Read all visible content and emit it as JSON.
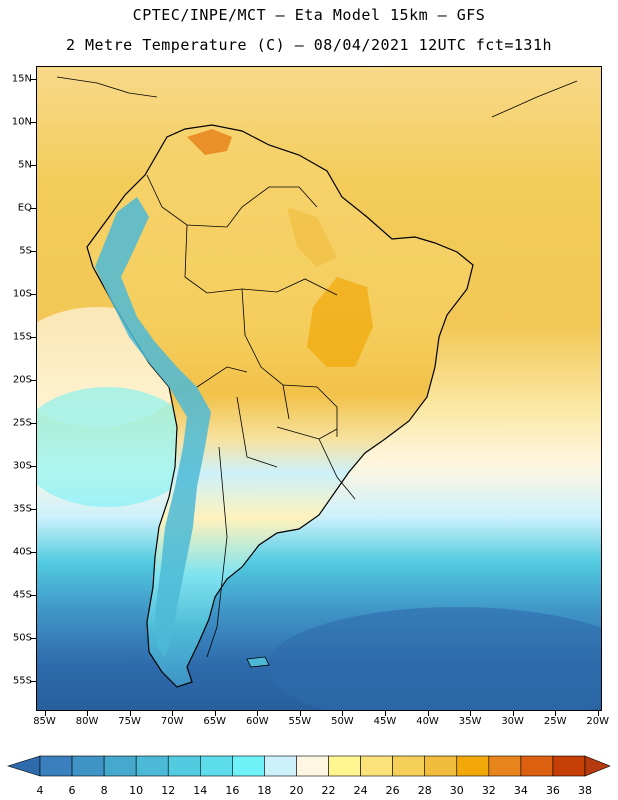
{
  "header": {
    "title_line1": "CPTEC/INPE/MCT –  Eta Model 15km – GFS",
    "title_line2": "2 Metre Temperature (C) – 08/04/2021 12UTC fct=131h"
  },
  "map": {
    "lat_labels": [
      "15N",
      "10N",
      "5N",
      "EQ",
      "5S",
      "10S",
      "15S",
      "20S",
      "25S",
      "30S",
      "35S",
      "40S",
      "45S",
      "50S",
      "55S"
    ],
    "lon_labels": [
      "85W",
      "80W",
      "75W",
      "70W",
      "65W",
      "60W",
      "55W",
      "50W",
      "45W",
      "40W",
      "35W",
      "30W",
      "25W",
      "20W"
    ],
    "extent": {
      "lon_min": -86,
      "lon_max": -19.5,
      "lat_max": 16.5,
      "lat_min": -58.5
    }
  },
  "colorbar": {
    "labels": [
      "4",
      "6",
      "8",
      "10",
      "12",
      "14",
      "16",
      "18",
      "20",
      "22",
      "24",
      "26",
      "28",
      "30",
      "32",
      "34",
      "36",
      "38"
    ],
    "colors": [
      "#2e6bac",
      "#3a7fbe",
      "#3f93c6",
      "#45a8cd",
      "#4cbad6",
      "#52cbe0",
      "#5ddcec",
      "#6ef2f8",
      "#cdf1fb",
      "#fff6e2",
      "#fff591",
      "#fbe37a",
      "#f6cf58",
      "#f0bd3c",
      "#f1a808",
      "#e7841c",
      "#dd5f10",
      "#c43e06",
      "#b53a0e"
    ]
  }
}
